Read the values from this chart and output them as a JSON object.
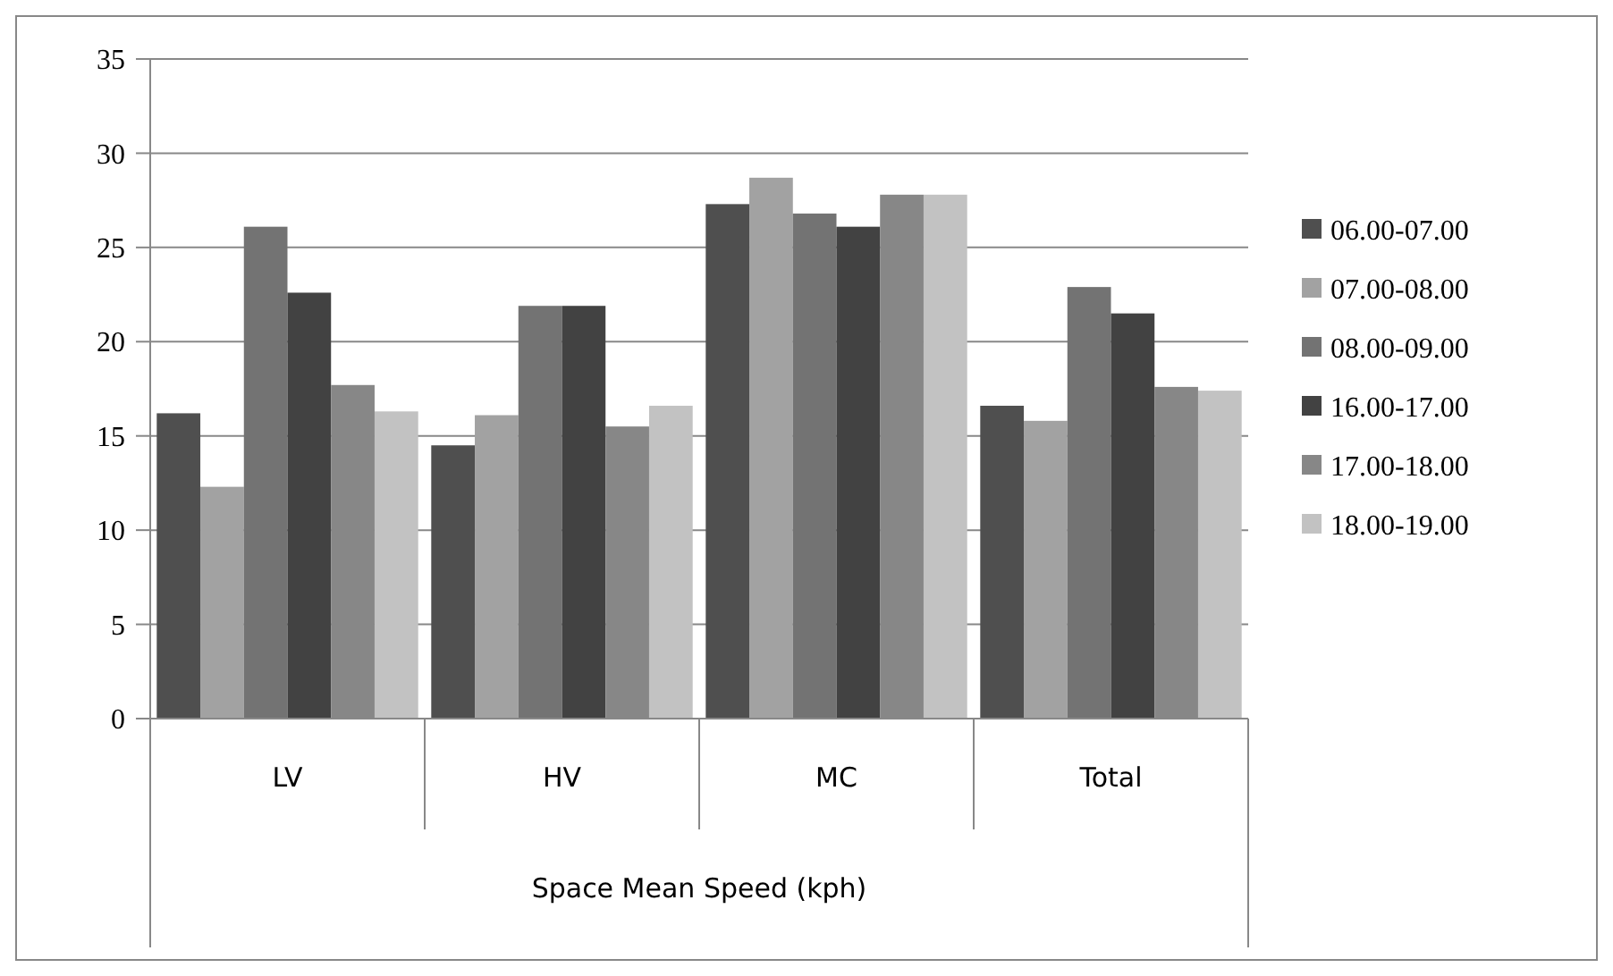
{
  "chart_data": {
    "type": "bar",
    "xlabel": "Space Mean Speed (kph)",
    "categories": [
      "LV",
      "HV",
      "MC",
      "Total"
    ],
    "series": [
      {
        "name": "06.00-07.00",
        "color": "#4f4f4f",
        "values": [
          16.2,
          14.5,
          27.3,
          16.6
        ]
      },
      {
        "name": "07.00-08.00",
        "color": "#a2a2a2",
        "values": [
          12.3,
          16.1,
          28.7,
          15.8
        ]
      },
      {
        "name": "08.00-09.00",
        "color": "#737373",
        "values": [
          26.1,
          21.9,
          26.8,
          22.9
        ]
      },
      {
        "name": "16.00-17.00",
        "color": "#424242",
        "values": [
          22.6,
          21.9,
          26.1,
          21.5
        ]
      },
      {
        "name": "17.00-18.00",
        "color": "#878787",
        "values": [
          17.7,
          15.5,
          27.8,
          17.6
        ]
      },
      {
        "name": "18.00-19.00",
        "color": "#c2c2c2",
        "values": [
          16.3,
          16.6,
          27.8,
          17.4
        ]
      }
    ],
    "ylim": [
      0,
      35
    ],
    "yticks": [
      0,
      5,
      10,
      15,
      20,
      25,
      30,
      35
    ],
    "grid": "y",
    "legend": "right"
  }
}
